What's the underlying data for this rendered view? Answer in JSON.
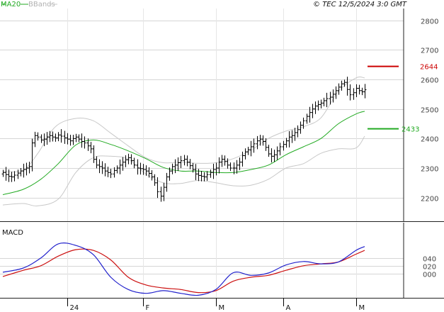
{
  "header": {
    "ma_label": "MA20",
    "bb_label": "BBands",
    "source": "© TEC 12/5/2024 3:0 GMT"
  },
  "colors": {
    "ma": "#22aa22",
    "bbands": "#c8c8c8",
    "bars": "#000000",
    "resistance": "#cc0000",
    "support": "#22aa22",
    "macd": "#2222cc",
    "signal": "#cc1111",
    "grid": "#d6d6d6"
  },
  "chart_data": [
    {
      "type": "ohlc",
      "name": "price",
      "ylim": [
        2120,
        2840
      ],
      "yticks": [
        2200,
        2300,
        2400,
        2500,
        2600,
        2700,
        2800
      ],
      "ytick_labels": [
        "2200",
        "2300",
        "2400",
        "2500",
        "2600",
        "2700",
        "2800"
      ],
      "x_labels": [
        "24",
        "F",
        "M",
        "A",
        "M"
      ],
      "x_label_idx": [
        22,
        48,
        73,
        96,
        121
      ],
      "closes": [
        2285,
        2278,
        2272,
        2270,
        2276,
        2283,
        2290,
        2295,
        2300,
        2305,
        2385,
        2410,
        2405,
        2395,
        2398,
        2405,
        2410,
        2405,
        2402,
        2412,
        2408,
        2402,
        2398,
        2392,
        2400,
        2405,
        2398,
        2390,
        2385,
        2375,
        2365,
        2330,
        2310,
        2305,
        2300,
        2290,
        2285,
        2280,
        2292,
        2300,
        2310,
        2320,
        2328,
        2335,
        2325,
        2310,
        2300,
        2298,
        2295,
        2290,
        2282,
        2270,
        2250,
        2220,
        2205,
        2235,
        2270,
        2290,
        2305,
        2310,
        2318,
        2325,
        2330,
        2320,
        2308,
        2295,
        2280,
        2275,
        2272,
        2270,
        2278,
        2285,
        2295,
        2300,
        2320,
        2330,
        2322,
        2310,
        2300,
        2300,
        2310,
        2320,
        2342,
        2355,
        2362,
        2372,
        2382,
        2392,
        2398,
        2390,
        2370,
        2348,
        2340,
        2345,
        2358,
        2372,
        2380,
        2392,
        2405,
        2410,
        2420,
        2430,
        2445,
        2460,
        2475,
        2488,
        2500,
        2510,
        2515,
        2520,
        2528,
        2535,
        2540,
        2550,
        2562,
        2574,
        2585,
        2590,
        2566,
        2548,
        2555,
        2570,
        2562,
        2558,
        2565
      ],
      "ma20": {
        "x": [
          0,
          7,
          13,
          19,
          25,
          31,
          37,
          43,
          49,
          55,
          61,
          67,
          73,
          79,
          85,
          91,
          97,
          103,
          109,
          115,
          121,
          124
        ],
        "y": [
          2210,
          2228,
          2262,
          2315,
          2378,
          2395,
          2380,
          2358,
          2332,
          2302,
          2290,
          2290,
          2285,
          2285,
          2295,
          2310,
          2345,
          2372,
          2400,
          2450,
          2483,
          2492
        ]
      },
      "bband_upper": {
        "x": [
          0,
          7,
          12,
          18,
          25,
          31,
          37,
          43,
          49,
          55,
          61,
          67,
          73,
          79,
          85,
          91,
          97,
          103,
          109,
          115,
          121,
          124
        ],
        "y": [
          2288,
          2293,
          2350,
          2440,
          2468,
          2460,
          2418,
          2375,
          2335,
          2318,
          2320,
          2316,
          2318,
          2332,
          2360,
          2400,
          2425,
          2440,
          2470,
          2560,
          2605,
          2605
        ]
      },
      "bband_lower": {
        "x": [
          0,
          7,
          12,
          19,
          25,
          31,
          37,
          43,
          49,
          55,
          61,
          67,
          73,
          79,
          85,
          91,
          97,
          103,
          109,
          115,
          121,
          124
        ],
        "y": [
          2175,
          2180,
          2172,
          2195,
          2285,
          2335,
          2340,
          2330,
          2280,
          2250,
          2248,
          2258,
          2250,
          2240,
          2242,
          2262,
          2300,
          2315,
          2350,
          2365,
          2368,
          2408
        ]
      },
      "resistance": {
        "value": 2644,
        "label": "2644"
      },
      "support": {
        "value": 2433,
        "label": "2433"
      }
    },
    {
      "type": "line",
      "name": "MACD",
      "title": "MACD",
      "ylim": [
        -60,
        125
      ],
      "yticks": [
        0,
        20,
        40
      ],
      "ytick_labels": [
        "000",
        "020",
        "040"
      ],
      "macd": {
        "x": [
          0,
          7,
          13,
          19,
          25,
          31,
          37,
          43,
          49,
          55,
          61,
          67,
          73,
          79,
          85,
          91,
          97,
          103,
          109,
          115,
          121,
          124
        ],
        "y": [
          3,
          14,
          40,
          77,
          73,
          49,
          -10,
          -42,
          -52,
          -45,
          -52,
          -57,
          -42,
          2,
          -5,
          1,
          22,
          31,
          25,
          30,
          60,
          70
        ]
      },
      "signal": {
        "x": [
          0,
          7,
          13,
          19,
          25,
          31,
          37,
          43,
          49,
          55,
          61,
          67,
          73,
          79,
          85,
          91,
          97,
          103,
          109,
          115,
          121,
          124
        ],
        "y": [
          -8,
          8,
          20,
          45,
          62,
          60,
          35,
          -10,
          -30,
          -38,
          -42,
          -50,
          -45,
          -20,
          -10,
          -5,
          8,
          20,
          25,
          30,
          50,
          60
        ]
      }
    }
  ]
}
